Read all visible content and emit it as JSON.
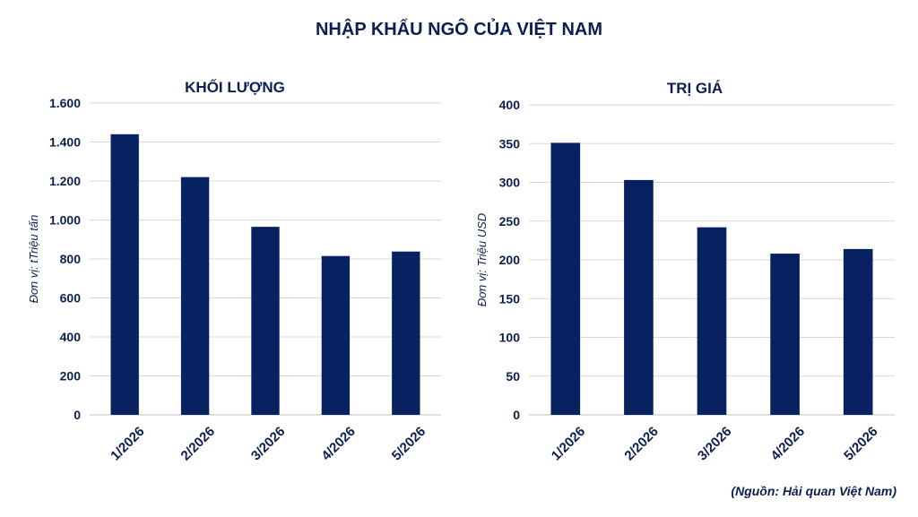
{
  "title": "NHẬP KHẨU NGÔ CỦA VIỆT NAM",
  "source": "(Nguồn: Hải quan Việt Nam)",
  "colors": {
    "bar": "#082160",
    "text": "#0b1f52",
    "grid": "#d9d9d9"
  },
  "chart_data": [
    {
      "type": "bar",
      "title": "KHỐI LƯỢNG",
      "ylabel": "Đơn vị: tTriệu tấn",
      "categories": [
        "1/2026",
        "2/2026",
        "3/2026",
        "4/2026",
        "5/2026"
      ],
      "values": [
        1440,
        1220,
        965,
        815,
        838
      ],
      "ylim": [
        0,
        1600
      ],
      "yticks": [
        0,
        200,
        400,
        600,
        800,
        1000,
        1200,
        1400,
        1600
      ],
      "ytick_labels": [
        "0",
        "200",
        "400",
        "600",
        "800",
        "1.000",
        "1.200",
        "1.400",
        "1.600"
      ],
      "grid": true
    },
    {
      "type": "bar",
      "title": "TRỊ GIÁ",
      "ylabel": "Đơn vị: Triệu USD",
      "categories": [
        "1/2026",
        "2/2026",
        "3/2026",
        "4/2026",
        "5/2026"
      ],
      "values": [
        351,
        303,
        242,
        208,
        214
      ],
      "ylim": [
        0,
        400
      ],
      "yticks": [
        0,
        50,
        100,
        150,
        200,
        250,
        300,
        350,
        400
      ],
      "ytick_labels": [
        "0",
        "50",
        "100",
        "150",
        "200",
        "250",
        "300",
        "350",
        "400"
      ],
      "grid": true
    }
  ]
}
